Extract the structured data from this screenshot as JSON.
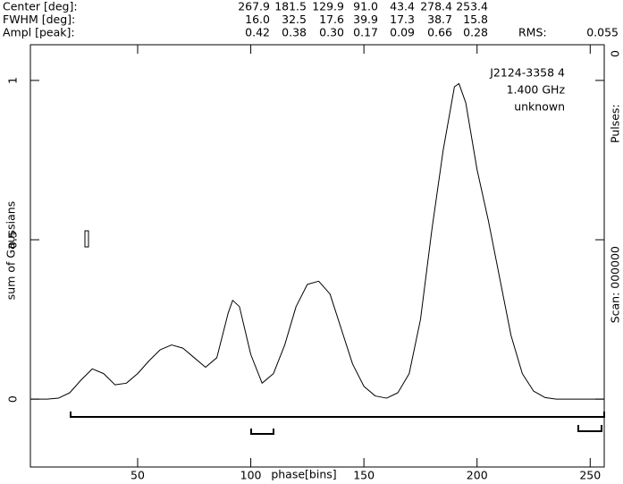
{
  "header": {
    "rows": [
      {
        "label": "Center [deg]:",
        "values": [
          "267.9",
          "181.5",
          "129.9",
          "91.0",
          "43.4",
          "278.4",
          "253.4"
        ]
      },
      {
        "label": "FWHM  [deg]:",
        "values": [
          "16.0",
          "32.5",
          "17.6",
          "39.9",
          "17.3",
          "38.7",
          "15.8"
        ]
      },
      {
        "label": "Ampl  [peak]:",
        "values": [
          "0.42",
          "0.38",
          "0.30",
          "0.17",
          "0.09",
          "0.66",
          "0.28"
        ]
      }
    ],
    "rms_label": "RMS:",
    "rms": "0.055"
  },
  "chart_data": {
    "type": "line",
    "annotations": [
      "J2124-3358 4",
      "1.400 GHz",
      "unknown"
    ],
    "side_labels": [
      "Scan: 000000",
      "Pulses:",
      "0"
    ],
    "xlabel": "phase[bins]",
    "ylabel": "sum of Gaussians",
    "x": [
      3,
      10,
      15,
      20,
      25,
      30,
      35,
      40,
      45,
      50,
      55,
      60,
      65,
      70,
      75,
      80,
      85,
      90,
      92,
      95,
      100,
      105,
      110,
      115,
      120,
      125,
      130,
      135,
      140,
      145,
      150,
      155,
      160,
      165,
      170,
      175,
      180,
      185,
      190,
      192,
      195,
      200,
      205,
      210,
      215,
      220,
      225,
      230,
      235,
      245,
      256
    ],
    "values": [
      0,
      0,
      0.003,
      0.02,
      0.06,
      0.095,
      0.08,
      0.045,
      0.05,
      0.08,
      0.12,
      0.155,
      0.17,
      0.16,
      0.13,
      0.1,
      0.13,
      0.27,
      0.31,
      0.29,
      0.14,
      0.05,
      0.08,
      0.17,
      0.29,
      0.36,
      0.37,
      0.33,
      0.22,
      0.11,
      0.04,
      0.01,
      0.003,
      0.02,
      0.08,
      0.25,
      0.53,
      0.78,
      0.98,
      0.99,
      0.93,
      0.72,
      0.56,
      0.38,
      0.2,
      0.08,
      0.025,
      0.005,
      0,
      0,
      0
    ],
    "color": "#000000",
    "xlim": [
      2.6,
      256.2
    ],
    "xticks": [
      50,
      100,
      150,
      200,
      250
    ],
    "ylim": [
      -0.213,
      1.112
    ],
    "yticks": [
      0,
      0.5,
      1
    ]
  }
}
